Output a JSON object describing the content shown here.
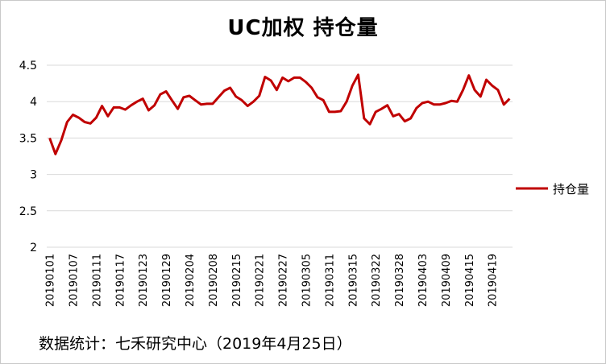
{
  "chart_data": {
    "type": "line",
    "title": "UC加权  持仓量",
    "xlabel": "",
    "ylabel": "",
    "ylim": [
      2,
      4.5
    ],
    "yticks": [
      "2",
      "2.5",
      "3",
      "3.5",
      "4",
      "4.5"
    ],
    "grid": true,
    "legend_position": "right",
    "x_tick_labels": [
      "20190101",
      "20190107",
      "20190111",
      "20190117",
      "20190123",
      "20190129",
      "20190204",
      "20190208",
      "20190215",
      "20190221",
      "20190227",
      "20190305",
      "20190311",
      "20190315",
      "20190322",
      "20190328",
      "20190403",
      "20190409",
      "20190415",
      "20190419"
    ],
    "series": [
      {
        "name": "持仓量",
        "color": "#c00000",
        "values": [
          3.5,
          3.28,
          3.47,
          3.72,
          3.82,
          3.78,
          3.72,
          3.7,
          3.78,
          3.94,
          3.8,
          3.92,
          3.92,
          3.89,
          3.95,
          4.0,
          4.04,
          3.88,
          3.95,
          4.1,
          4.14,
          4.02,
          3.9,
          4.06,
          4.08,
          4.02,
          3.96,
          3.97,
          3.97,
          4.06,
          4.15,
          4.19,
          4.07,
          4.02,
          3.94,
          4.0,
          4.08,
          4.34,
          4.29,
          4.16,
          4.33,
          4.28,
          4.33,
          4.33,
          4.27,
          4.19,
          4.06,
          4.02,
          3.86,
          3.86,
          3.87,
          4.0,
          4.22,
          4.37,
          3.77,
          3.69,
          3.86,
          3.9,
          3.95,
          3.8,
          3.83,
          3.73,
          3.77,
          3.91,
          3.98,
          4.0,
          3.96,
          3.96,
          3.98,
          4.01,
          4.0,
          4.16,
          4.36,
          4.16,
          4.07,
          4.3,
          4.22,
          4.16,
          3.96,
          4.04
        ]
      }
    ]
  },
  "footer": "数据统计：七禾研究中心（2019年4月25日）"
}
